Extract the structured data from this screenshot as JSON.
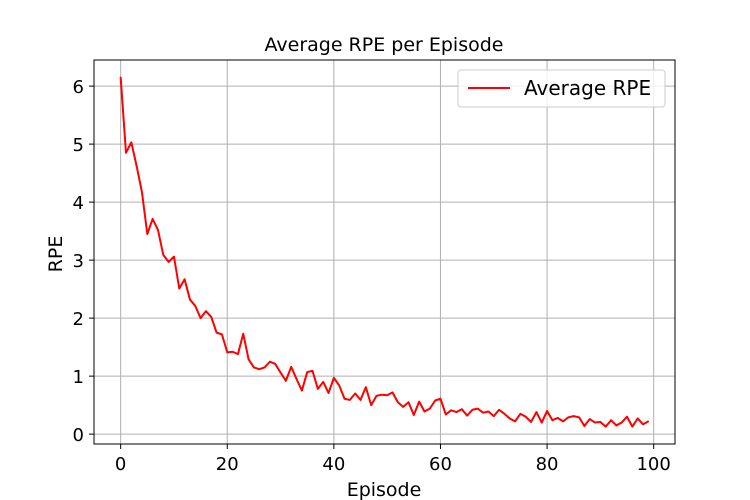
{
  "chart_data": {
    "type": "line",
    "title": "Average RPE per Episode",
    "xlabel": "Episode",
    "ylabel": "RPE",
    "xlim": [
      -5,
      104
    ],
    "ylim": [
      -0.17,
      6.45
    ],
    "xticks": [
      0,
      20,
      40,
      60,
      80,
      100
    ],
    "yticks": [
      0,
      1,
      2,
      3,
      4,
      5,
      6
    ],
    "grid": true,
    "legend_position": "top-right",
    "series": [
      {
        "name": "Average RPE",
        "color": "#ff0000",
        "x": [
          0,
          1,
          2,
          3,
          4,
          5,
          6,
          7,
          8,
          9,
          10,
          11,
          12,
          13,
          14,
          15,
          16,
          17,
          18,
          19,
          20,
          21,
          22,
          23,
          24,
          25,
          26,
          27,
          28,
          29,
          30,
          31,
          32,
          33,
          34,
          35,
          36,
          37,
          38,
          39,
          40,
          41,
          42,
          43,
          44,
          45,
          46,
          47,
          48,
          49,
          50,
          51,
          52,
          53,
          54,
          55,
          56,
          57,
          58,
          59,
          60,
          61,
          62,
          63,
          64,
          65,
          66,
          67,
          68,
          69,
          70,
          71,
          72,
          73,
          74,
          75,
          76,
          77,
          78,
          79,
          80,
          81,
          82,
          83,
          84,
          85,
          86,
          87,
          88,
          89,
          90,
          91,
          92,
          93,
          94,
          95,
          96,
          97,
          98,
          99
        ],
        "values": [
          6.15,
          4.85,
          5.03,
          4.62,
          4.17,
          3.45,
          3.71,
          3.52,
          3.09,
          2.97,
          3.06,
          2.51,
          2.67,
          2.32,
          2.21,
          2.0,
          2.12,
          2.02,
          1.75,
          1.72,
          1.41,
          1.42,
          1.38,
          1.73,
          1.29,
          1.15,
          1.12,
          1.15,
          1.25,
          1.21,
          1.06,
          0.92,
          1.16,
          0.95,
          0.75,
          1.07,
          1.09,
          0.78,
          0.9,
          0.71,
          0.97,
          0.84,
          0.61,
          0.59,
          0.7,
          0.59,
          0.81,
          0.5,
          0.66,
          0.68,
          0.67,
          0.72,
          0.55,
          0.47,
          0.55,
          0.33,
          0.56,
          0.39,
          0.44,
          0.58,
          0.61,
          0.34,
          0.41,
          0.38,
          0.43,
          0.32,
          0.42,
          0.44,
          0.37,
          0.39,
          0.31,
          0.42,
          0.35,
          0.27,
          0.22,
          0.35,
          0.3,
          0.21,
          0.38,
          0.2,
          0.4,
          0.24,
          0.28,
          0.22,
          0.29,
          0.31,
          0.29,
          0.14,
          0.26,
          0.2,
          0.21,
          0.13,
          0.24,
          0.15,
          0.2,
          0.3,
          0.13,
          0.27,
          0.17,
          0.22
        ]
      }
    ]
  }
}
